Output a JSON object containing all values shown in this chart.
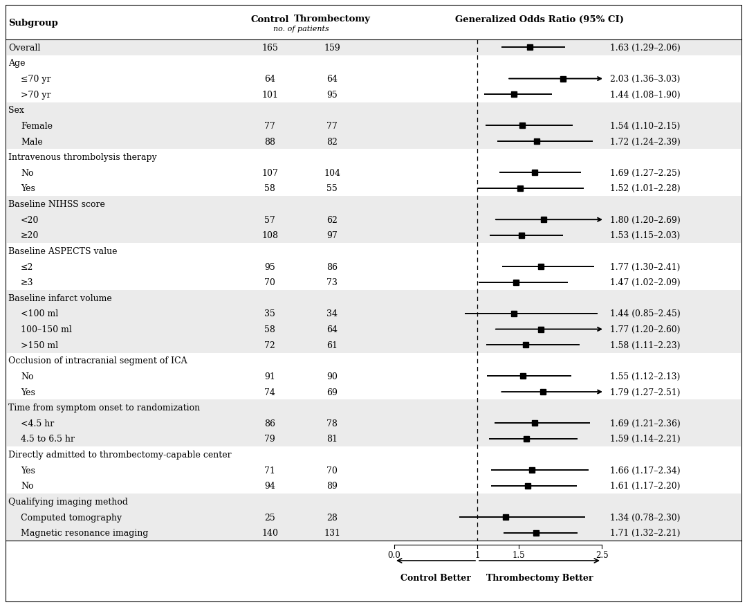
{
  "title": "Generalized Odds Ratio (95% CI)",
  "col_control": "Control",
  "col_thrombectomy": "Thrombectomy",
  "col_subunit": "no. of patients",
  "rows": [
    {
      "label": "Overall",
      "indent": 0,
      "control": "165",
      "thromb": "159",
      "est": 1.63,
      "lo": 1.29,
      "hi": 2.06,
      "ci_text": "1.63 (1.29–2.06)",
      "arrow_hi": false,
      "arrow_lo": false,
      "is_header": false,
      "shaded": true
    },
    {
      "label": "Age",
      "indent": 0,
      "control": "",
      "thromb": "",
      "est": null,
      "lo": null,
      "hi": null,
      "ci_text": "",
      "arrow_hi": false,
      "arrow_lo": false,
      "is_header": true,
      "shaded": false
    },
    {
      "label": "≤70 yr",
      "indent": 1,
      "control": "64",
      "thromb": "64",
      "est": 2.03,
      "lo": 1.36,
      "hi": 2.5,
      "ci_text": "2.03 (1.36–3.03)",
      "arrow_hi": true,
      "arrow_lo": false,
      "is_header": false,
      "shaded": false
    },
    {
      "label": ">70 yr",
      "indent": 1,
      "control": "101",
      "thromb": "95",
      "est": 1.44,
      "lo": 1.08,
      "hi": 1.9,
      "ci_text": "1.44 (1.08–1.90)",
      "arrow_hi": false,
      "arrow_lo": false,
      "is_header": false,
      "shaded": false
    },
    {
      "label": "Sex",
      "indent": 0,
      "control": "",
      "thromb": "",
      "est": null,
      "lo": null,
      "hi": null,
      "ci_text": "",
      "arrow_hi": false,
      "arrow_lo": false,
      "is_header": true,
      "shaded": true
    },
    {
      "label": "Female",
      "indent": 1,
      "control": "77",
      "thromb": "77",
      "est": 1.54,
      "lo": 1.1,
      "hi": 2.15,
      "ci_text": "1.54 (1.10–2.15)",
      "arrow_hi": false,
      "arrow_lo": false,
      "is_header": false,
      "shaded": true
    },
    {
      "label": "Male",
      "indent": 1,
      "control": "88",
      "thromb": "82",
      "est": 1.72,
      "lo": 1.24,
      "hi": 2.39,
      "ci_text": "1.72 (1.24–2.39)",
      "arrow_hi": false,
      "arrow_lo": false,
      "is_header": false,
      "shaded": true
    },
    {
      "label": "Intravenous thrombolysis therapy",
      "indent": 0,
      "control": "",
      "thromb": "",
      "est": null,
      "lo": null,
      "hi": null,
      "ci_text": "",
      "arrow_hi": false,
      "arrow_lo": false,
      "is_header": true,
      "shaded": false
    },
    {
      "label": "No",
      "indent": 1,
      "control": "107",
      "thromb": "104",
      "est": 1.69,
      "lo": 1.27,
      "hi": 2.25,
      "ci_text": "1.69 (1.27–2.25)",
      "arrow_hi": false,
      "arrow_lo": false,
      "is_header": false,
      "shaded": false
    },
    {
      "label": "Yes",
      "indent": 1,
      "control": "58",
      "thromb": "55",
      "est": 1.52,
      "lo": 1.01,
      "hi": 2.28,
      "ci_text": "1.52 (1.01–2.28)",
      "arrow_hi": false,
      "arrow_lo": false,
      "is_header": false,
      "shaded": false
    },
    {
      "label": "Baseline NIHSS score",
      "indent": 0,
      "control": "",
      "thromb": "",
      "est": null,
      "lo": null,
      "hi": null,
      "ci_text": "",
      "arrow_hi": false,
      "arrow_lo": false,
      "is_header": true,
      "shaded": true
    },
    {
      "label": "<20",
      "indent": 1,
      "control": "57",
      "thromb": "62",
      "est": 1.8,
      "lo": 1.2,
      "hi": 2.5,
      "ci_text": "1.80 (1.20–2.69)",
      "arrow_hi": true,
      "arrow_lo": false,
      "is_header": false,
      "shaded": true
    },
    {
      "label": "≥20",
      "indent": 1,
      "control": "108",
      "thromb": "97",
      "est": 1.53,
      "lo": 1.15,
      "hi": 2.03,
      "ci_text": "1.53 (1.15–2.03)",
      "arrow_hi": false,
      "arrow_lo": false,
      "is_header": false,
      "shaded": true
    },
    {
      "label": "Baseline ASPECTS value",
      "indent": 0,
      "control": "",
      "thromb": "",
      "est": null,
      "lo": null,
      "hi": null,
      "ci_text": "",
      "arrow_hi": false,
      "arrow_lo": false,
      "is_header": true,
      "shaded": false
    },
    {
      "label": "≤2",
      "indent": 1,
      "control": "95",
      "thromb": "86",
      "est": 1.77,
      "lo": 1.3,
      "hi": 2.41,
      "ci_text": "1.77 (1.30–2.41)",
      "arrow_hi": false,
      "arrow_lo": false,
      "is_header": false,
      "shaded": false
    },
    {
      "label": "≥3",
      "indent": 1,
      "control": "70",
      "thromb": "73",
      "est": 1.47,
      "lo": 1.02,
      "hi": 2.09,
      "ci_text": "1.47 (1.02–2.09)",
      "arrow_hi": false,
      "arrow_lo": false,
      "is_header": false,
      "shaded": false
    },
    {
      "label": "Baseline infarct volume",
      "indent": 0,
      "control": "",
      "thromb": "",
      "est": null,
      "lo": null,
      "hi": null,
      "ci_text": "",
      "arrow_hi": false,
      "arrow_lo": false,
      "is_header": true,
      "shaded": true
    },
    {
      "label": "<100 ml",
      "indent": 1,
      "control": "35",
      "thromb": "34",
      "est": 1.44,
      "lo": 0.85,
      "hi": 2.45,
      "ci_text": "1.44 (0.85–2.45)",
      "arrow_hi": false,
      "arrow_lo": false,
      "is_header": false,
      "shaded": true
    },
    {
      "label": "100–150 ml",
      "indent": 1,
      "control": "58",
      "thromb": "64",
      "est": 1.77,
      "lo": 1.2,
      "hi": 2.5,
      "ci_text": "1.77 (1.20–2.60)",
      "arrow_hi": true,
      "arrow_lo": false,
      "is_header": false,
      "shaded": true
    },
    {
      "label": ">150 ml",
      "indent": 1,
      "control": "72",
      "thromb": "61",
      "est": 1.58,
      "lo": 1.11,
      "hi": 2.23,
      "ci_text": "1.58 (1.11–2.23)",
      "arrow_hi": false,
      "arrow_lo": false,
      "is_header": false,
      "shaded": true
    },
    {
      "label": "Occlusion of intracranial segment of ICA",
      "indent": 0,
      "control": "",
      "thromb": "",
      "est": null,
      "lo": null,
      "hi": null,
      "ci_text": "",
      "arrow_hi": false,
      "arrow_lo": false,
      "is_header": true,
      "shaded": false
    },
    {
      "label": "No",
      "indent": 1,
      "control": "91",
      "thromb": "90",
      "est": 1.55,
      "lo": 1.12,
      "hi": 2.13,
      "ci_text": "1.55 (1.12–2.13)",
      "arrow_hi": false,
      "arrow_lo": false,
      "is_header": false,
      "shaded": false
    },
    {
      "label": "Yes",
      "indent": 1,
      "control": "74",
      "thromb": "69",
      "est": 1.79,
      "lo": 1.27,
      "hi": 2.5,
      "ci_text": "1.79 (1.27–2.51)",
      "arrow_hi": true,
      "arrow_lo": false,
      "is_header": false,
      "shaded": false
    },
    {
      "label": "Time from symptom onset to randomization",
      "indent": 0,
      "control": "",
      "thromb": "",
      "est": null,
      "lo": null,
      "hi": null,
      "ci_text": "",
      "arrow_hi": false,
      "arrow_lo": false,
      "is_header": true,
      "shaded": true
    },
    {
      "label": "<4.5 hr",
      "indent": 1,
      "control": "86",
      "thromb": "78",
      "est": 1.69,
      "lo": 1.21,
      "hi": 2.36,
      "ci_text": "1.69 (1.21–2.36)",
      "arrow_hi": false,
      "arrow_lo": false,
      "is_header": false,
      "shaded": true
    },
    {
      "label": "4.5 to 6.5 hr",
      "indent": 1,
      "control": "79",
      "thromb": "81",
      "est": 1.59,
      "lo": 1.14,
      "hi": 2.21,
      "ci_text": "1.59 (1.14–2.21)",
      "arrow_hi": false,
      "arrow_lo": false,
      "is_header": false,
      "shaded": true
    },
    {
      "label": "Directly admitted to thrombectomy-capable center",
      "indent": 0,
      "control": "",
      "thromb": "",
      "est": null,
      "lo": null,
      "hi": null,
      "ci_text": "",
      "arrow_hi": false,
      "arrow_lo": false,
      "is_header": true,
      "shaded": false
    },
    {
      "label": "Yes",
      "indent": 1,
      "control": "71",
      "thromb": "70",
      "est": 1.66,
      "lo": 1.17,
      "hi": 2.34,
      "ci_text": "1.66 (1.17–2.34)",
      "arrow_hi": false,
      "arrow_lo": false,
      "is_header": false,
      "shaded": false
    },
    {
      "label": "No",
      "indent": 1,
      "control": "94",
      "thromb": "89",
      "est": 1.61,
      "lo": 1.17,
      "hi": 2.2,
      "ci_text": "1.61 (1.17–2.20)",
      "arrow_hi": false,
      "arrow_lo": false,
      "is_header": false,
      "shaded": false
    },
    {
      "label": "Qualifying imaging method",
      "indent": 0,
      "control": "",
      "thromb": "",
      "est": null,
      "lo": null,
      "hi": null,
      "ci_text": "",
      "arrow_hi": false,
      "arrow_lo": false,
      "is_header": true,
      "shaded": true
    },
    {
      "label": "Computed tomography",
      "indent": 1,
      "control": "25",
      "thromb": "28",
      "est": 1.34,
      "lo": 0.78,
      "hi": 2.3,
      "ci_text": "1.34 (0.78–2.30)",
      "arrow_hi": false,
      "arrow_lo": false,
      "is_header": false,
      "shaded": true
    },
    {
      "label": "Magnetic resonance imaging",
      "indent": 1,
      "control": "140",
      "thromb": "131",
      "est": 1.71,
      "lo": 1.32,
      "hi": 2.21,
      "ci_text": "1.71 (1.32–2.21)",
      "arrow_hi": false,
      "arrow_lo": false,
      "is_header": false,
      "shaded": true
    }
  ],
  "xmin": 0.0,
  "xmax": 2.5,
  "xref": 1.0,
  "xticks": [
    0.0,
    1.0,
    1.5,
    2.5
  ],
  "clip_hi": 2.5,
  "clip_lo": 0.0,
  "shaded_color": "#ebebeb",
  "bg_color": "#ffffff",
  "border_color": "#000000"
}
